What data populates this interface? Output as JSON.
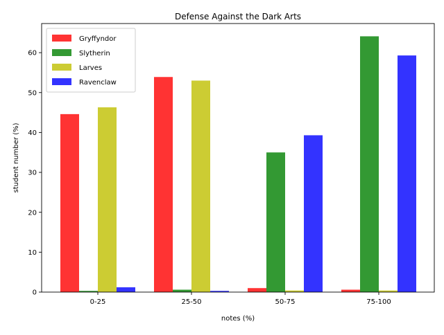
{
  "chart_data": {
    "type": "bar",
    "title": "Defense Against the Dark Arts",
    "xlabel": "notes (%)",
    "ylabel": "student number (%)",
    "categories": [
      "0-25",
      "25-50",
      "50-75",
      "75-100"
    ],
    "series": [
      {
        "name": "Gryffyndor",
        "color": "#ff0000",
        "values": [
          44.6,
          53.9,
          1.0,
          0.6
        ]
      },
      {
        "name": "Slytherin",
        "color": "#008000",
        "values": [
          0.3,
          0.6,
          35.0,
          64.1
        ]
      },
      {
        "name": "Larves",
        "color": "#bfbf00",
        "values": [
          46.3,
          53.0,
          0.4,
          0.4
        ]
      },
      {
        "name": "Ravenclaw",
        "color": "#0000ff",
        "values": [
          1.2,
          0.3,
          39.3,
          59.3
        ]
      }
    ],
    "ylim": [
      0,
      67.3
    ],
    "yticks": [
      0,
      10,
      20,
      30,
      40,
      50,
      60
    ],
    "bar_alpha": 0.8,
    "grid": false,
    "legend_position": "upper left"
  }
}
